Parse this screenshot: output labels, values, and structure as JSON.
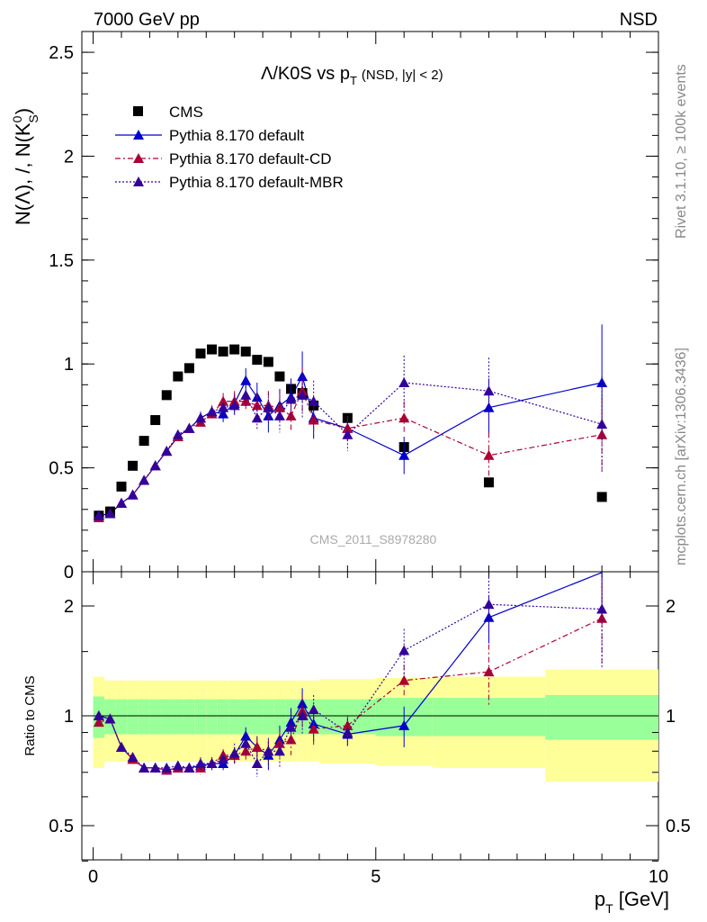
{
  "header": {
    "left": "7000 GeV pp",
    "right": "NSD"
  },
  "title": {
    "main": "Λ/K0S vs p",
    "main_sub": "T",
    "extra": "(NSD, |y| < 2)"
  },
  "yaxis_label": "N(Λ), /, N(K",
  "yaxis_label_sup": "0",
  "yaxis_label_sub": "S",
  "yaxis_label_end": ")",
  "xaxis_label_pre": "p",
  "xaxis_label_sub": "T",
  "xaxis_label_post": " [GeV]",
  "ratio_ylabel": "Ratio to CMS",
  "watermark": "CMS_2011_S8978280",
  "side_text_top": "Rivet 3.1.10, ≥ 100k events",
  "side_text_bottom": "mcplots.cern.ch [arXiv:1306.3436]",
  "legend": [
    {
      "label": "CMS",
      "marker": "square",
      "color": "#000000"
    },
    {
      "label": "Pythia 8.170 default",
      "marker": "triangle",
      "color": "#0000cc",
      "dash": "solid"
    },
    {
      "label": "Pythia 8.170 default-CD",
      "marker": "triangle",
      "color": "#aa0033",
      "dash": "dashdot"
    },
    {
      "label": "Pythia 8.170 default-MBR",
      "marker": "triangle",
      "color": "#330099",
      "dash": "dotted"
    }
  ],
  "chart_data": {
    "type": "scatter",
    "xlim": [
      -0.2,
      10
    ],
    "ylim": [
      0,
      2.6
    ],
    "ratio_ylim_log": [
      0.35,
      2.4
    ],
    "x_ticks": [
      "0",
      "5",
      "10"
    ],
    "y_ticks": [
      "0",
      "0.5",
      "1",
      "1.5",
      "2",
      "2.5"
    ],
    "ratio_ticks": [
      "0.5",
      "1",
      "2"
    ],
    "series": [
      {
        "name": "CMS",
        "x": [
          0.1,
          0.3,
          0.5,
          0.7,
          0.9,
          1.1,
          1.3,
          1.5,
          1.7,
          1.9,
          2.1,
          2.3,
          2.5,
          2.7,
          2.9,
          3.1,
          3.3,
          3.5,
          3.7,
          3.9,
          4.5,
          5.5,
          7.0,
          9.0
        ],
        "y": [
          0.27,
          0.29,
          0.41,
          0.51,
          0.63,
          0.73,
          0.85,
          0.94,
          0.98,
          1.05,
          1.07,
          1.06,
          1.07,
          1.06,
          1.02,
          1.01,
          0.94,
          0.88,
          0.86,
          0.8,
          0.74,
          0.6,
          0.43,
          0.36
        ]
      },
      {
        "name": "Pythia 8.170 default",
        "x": [
          0.1,
          0.3,
          0.5,
          0.7,
          0.9,
          1.1,
          1.3,
          1.5,
          1.7,
          1.9,
          2.1,
          2.3,
          2.5,
          2.7,
          2.9,
          3.1,
          3.3,
          3.5,
          3.7,
          3.9,
          4.5,
          5.5,
          7.0,
          9.0
        ],
        "y": [
          0.27,
          0.28,
          0.33,
          0.37,
          0.44,
          0.51,
          0.58,
          0.65,
          0.69,
          0.74,
          0.77,
          0.76,
          0.81,
          0.92,
          0.84,
          0.75,
          0.8,
          0.84,
          0.94,
          0.74,
          0.69,
          0.56,
          0.79,
          0.91
        ],
        "err": [
          0.01,
          0.01,
          0.01,
          0.01,
          0.01,
          0.02,
          0.02,
          0.02,
          0.02,
          0.03,
          0.03,
          0.04,
          0.05,
          0.06,
          0.07,
          0.08,
          0.08,
          0.09,
          0.12,
          0.1,
          0.06,
          0.09,
          0.14,
          0.28
        ]
      },
      {
        "name": "Pythia 8.170 default-CD",
        "x": [
          0.1,
          0.3,
          0.5,
          0.7,
          0.9,
          1.1,
          1.3,
          1.5,
          1.7,
          1.9,
          2.1,
          2.3,
          2.5,
          2.7,
          2.9,
          3.1,
          3.3,
          3.5,
          3.7,
          3.9,
          4.5,
          5.5,
          7.0,
          9.0
        ],
        "y": [
          0.26,
          0.28,
          0.33,
          0.37,
          0.44,
          0.51,
          0.58,
          0.65,
          0.69,
          0.72,
          0.76,
          0.82,
          0.82,
          0.82,
          0.8,
          0.8,
          0.79,
          0.75,
          0.87,
          0.73,
          0.69,
          0.74,
          0.56,
          0.66
        ],
        "err": [
          0.01,
          0.01,
          0.01,
          0.01,
          0.01,
          0.02,
          0.02,
          0.02,
          0.02,
          0.03,
          0.03,
          0.04,
          0.05,
          0.05,
          0.06,
          0.07,
          0.07,
          0.08,
          0.11,
          0.09,
          0.06,
          0.08,
          0.11,
          0.18
        ]
      },
      {
        "name": "Pythia 8.170 default-MBR",
        "x": [
          0.1,
          0.3,
          0.5,
          0.7,
          0.9,
          1.1,
          1.3,
          1.5,
          1.7,
          1.9,
          2.1,
          2.3,
          2.5,
          2.7,
          2.9,
          3.1,
          3.3,
          3.5,
          3.7,
          3.9,
          4.5,
          5.5,
          7.0,
          9.0
        ],
        "y": [
          0.27,
          0.28,
          0.33,
          0.37,
          0.44,
          0.51,
          0.58,
          0.66,
          0.69,
          0.74,
          0.77,
          0.79,
          0.8,
          0.85,
          0.74,
          0.79,
          0.75,
          0.83,
          0.85,
          0.82,
          0.66,
          0.91,
          0.87,
          0.71
        ],
        "err": [
          0.01,
          0.01,
          0.01,
          0.01,
          0.01,
          0.02,
          0.02,
          0.02,
          0.02,
          0.03,
          0.03,
          0.04,
          0.05,
          0.06,
          0.06,
          0.07,
          0.08,
          0.09,
          0.11,
          0.1,
          0.08,
          0.13,
          0.16,
          0.23
        ]
      }
    ],
    "ratio_series": [
      {
        "name": "Pythia 8.170 default",
        "y": [
          1.0,
          0.98,
          0.82,
          0.76,
          0.72,
          0.72,
          0.71,
          0.72,
          0.72,
          0.73,
          0.74,
          0.74,
          0.78,
          0.88,
          0.82,
          0.78,
          0.86,
          0.96,
          1.08,
          0.95,
          0.89,
          0.94,
          1.86,
          2.47
        ],
        "err": [
          0.02,
          0.02,
          0.02,
          0.02,
          0.02,
          0.02,
          0.02,
          0.02,
          0.02,
          0.03,
          0.03,
          0.03,
          0.04,
          0.05,
          0.06,
          0.07,
          0.08,
          0.09,
          0.11,
          0.1,
          0.06,
          0.12,
          0.28,
          0.6
        ]
      },
      {
        "name": "Pythia 8.170 default-CD",
        "y": [
          0.96,
          0.98,
          0.82,
          0.76,
          0.72,
          0.72,
          0.71,
          0.72,
          0.72,
          0.72,
          0.74,
          0.78,
          0.78,
          0.8,
          0.82,
          0.8,
          0.84,
          0.86,
          1.03,
          0.92,
          0.94,
          1.25,
          1.32,
          1.85
        ],
        "err": [
          0.02,
          0.02,
          0.02,
          0.02,
          0.02,
          0.02,
          0.02,
          0.02,
          0.02,
          0.03,
          0.03,
          0.03,
          0.04,
          0.05,
          0.05,
          0.06,
          0.07,
          0.08,
          0.1,
          0.09,
          0.06,
          0.13,
          0.25,
          0.45
        ]
      },
      {
        "name": "Pythia 8.170 default-MBR",
        "y": [
          1.0,
          0.98,
          0.82,
          0.77,
          0.72,
          0.72,
          0.72,
          0.73,
          0.72,
          0.74,
          0.74,
          0.76,
          0.79,
          0.84,
          0.74,
          0.8,
          0.8,
          0.93,
          1.0,
          1.04,
          0.9,
          1.51,
          2.02,
          1.96
        ],
        "err": [
          0.02,
          0.02,
          0.02,
          0.02,
          0.02,
          0.02,
          0.02,
          0.02,
          0.02,
          0.03,
          0.03,
          0.04,
          0.05,
          0.06,
          0.06,
          0.07,
          0.08,
          0.09,
          0.11,
          0.1,
          0.08,
          0.22,
          0.38,
          0.6
        ]
      }
    ],
    "ratio_bands": {
      "x_edges": [
        0.0,
        0.2,
        0.4,
        0.6,
        0.8,
        1.0,
        1.2,
        1.4,
        1.6,
        1.8,
        2.0,
        2.2,
        2.4,
        2.6,
        2.8,
        3.0,
        3.2,
        3.4,
        3.6,
        3.8,
        4.0,
        5.0,
        6.0,
        8.0,
        10.0
      ],
      "stat_syst": [
        0.28,
        0.25,
        0.25,
        0.25,
        0.25,
        0.25,
        0.25,
        0.25,
        0.25,
        0.25,
        0.25,
        0.25,
        0.25,
        0.25,
        0.25,
        0.25,
        0.25,
        0.25,
        0.25,
        0.25,
        0.26,
        0.27,
        0.28,
        0.34
      ],
      "stat": [
        0.13,
        0.11,
        0.11,
        0.11,
        0.11,
        0.11,
        0.11,
        0.11,
        0.11,
        0.11,
        0.11,
        0.11,
        0.11,
        0.11,
        0.11,
        0.11,
        0.11,
        0.11,
        0.11,
        0.11,
        0.11,
        0.12,
        0.12,
        0.14
      ]
    }
  }
}
